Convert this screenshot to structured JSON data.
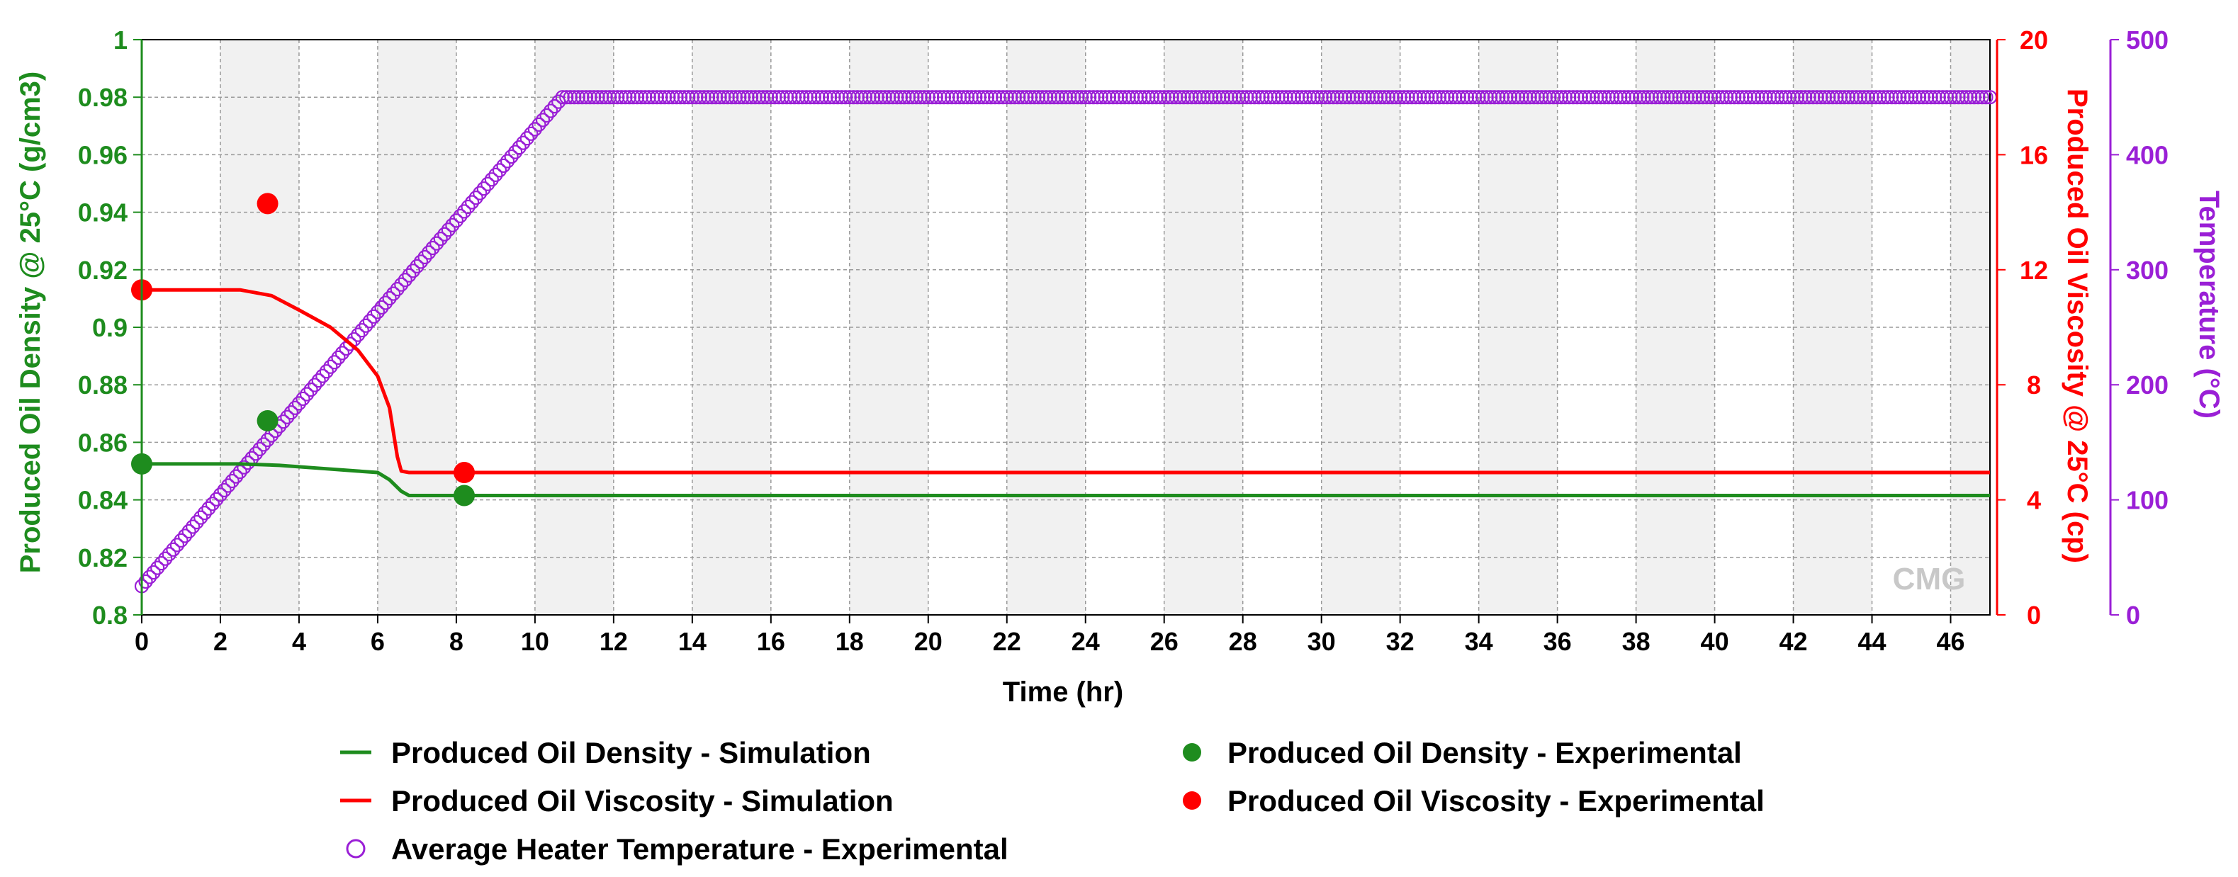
{
  "chart_data": {
    "type": "line",
    "xlabel": "Time (hr)",
    "xlim": [
      0,
      47
    ],
    "x_ticks": [
      0,
      2,
      4,
      6,
      8,
      10,
      12,
      14,
      16,
      18,
      20,
      22,
      24,
      26,
      28,
      30,
      32,
      34,
      36,
      38,
      40,
      42,
      44,
      46
    ],
    "y_left": {
      "label": "Produced Oil Density @ 25°C (g/cm3)",
      "lim": [
        0.8,
        1.0
      ],
      "ticks": [
        "0.8",
        "0.82",
        "0.84",
        "0.86",
        "0.88",
        "0.9",
        "0.92",
        "0.94",
        "0.96",
        "0.98",
        "1"
      ],
      "color": "#1e8c1e"
    },
    "y_right1": {
      "label": "Produced Oil Viscosity @ 25°C (cp)",
      "lim": [
        0,
        20
      ],
      "ticks": [
        "0",
        "4",
        "8",
        "12",
        "16",
        "20"
      ],
      "color": "#ff0000"
    },
    "y_right2": {
      "label": "Temperature (°C)",
      "lim": [
        0,
        500
      ],
      "ticks": [
        "0",
        "100",
        "200",
        "300",
        "400",
        "500"
      ],
      "color": "#9a1fd6"
    },
    "grid": true,
    "series": [
      {
        "name": "Produced Oil Density - Simulation",
        "kind": "line",
        "axis": "left",
        "color": "#1e8c1e",
        "x": [
          0,
          2.5,
          3.5,
          4.5,
          5.5,
          6.0,
          6.3,
          6.6,
          6.8,
          7.0,
          47
        ],
        "y": [
          0.8525,
          0.8525,
          0.852,
          0.851,
          0.85,
          0.8495,
          0.847,
          0.843,
          0.8415,
          0.8415,
          0.8415
        ]
      },
      {
        "name": "Produced Oil Viscosity - Simulation",
        "kind": "line",
        "axis": "right1",
        "color": "#ff0000",
        "x": [
          0,
          2.5,
          3.3,
          4.0,
          4.8,
          5.5,
          6.0,
          6.3,
          6.5,
          6.6,
          6.8,
          7.0,
          47
        ],
        "y": [
          11.3,
          11.3,
          11.1,
          10.6,
          10.0,
          9.2,
          8.3,
          7.2,
          5.5,
          5.0,
          4.95,
          4.95,
          4.95
        ]
      },
      {
        "name": "Produced Oil Density - Experimental",
        "kind": "points",
        "axis": "left",
        "color": "#1e8c1e",
        "x": [
          0,
          3.2,
          8.2
        ],
        "y": [
          0.8525,
          0.8675,
          0.8415
        ]
      },
      {
        "name": "Produced Oil Viscosity - Experimental",
        "kind": "points",
        "axis": "right1",
        "color": "#ff0000",
        "x": [
          0,
          3.2,
          8.2
        ],
        "y": [
          11.3,
          14.3,
          4.95
        ]
      },
      {
        "name": "Average Heater Temperature - Experimental",
        "kind": "open-markers",
        "axis": "right2",
        "color": "#9a1fd6",
        "ramp": {
          "x_start": 0,
          "y_start": 25,
          "x_end": 10.7,
          "y_end": 450,
          "x_max": 47,
          "step": 0.1
        }
      }
    ],
    "legend": [
      {
        "label": "Produced Oil Density - Simulation",
        "symbol": "line",
        "color": "#1e8c1e"
      },
      {
        "label": "Produced Oil Density - Experimental",
        "symbol": "dot",
        "color": "#1e8c1e"
      },
      {
        "label": "Produced Oil Viscosity - Simulation",
        "symbol": "line",
        "color": "#ff0000"
      },
      {
        "label": "Produced Oil Viscosity - Experimental",
        "symbol": "dot",
        "color": "#ff0000"
      },
      {
        "label": "Average Heater Temperature - Experimental",
        "symbol": "circle",
        "color": "#9a1fd6"
      }
    ],
    "legend_position": "bottom",
    "watermark": "CMG"
  }
}
